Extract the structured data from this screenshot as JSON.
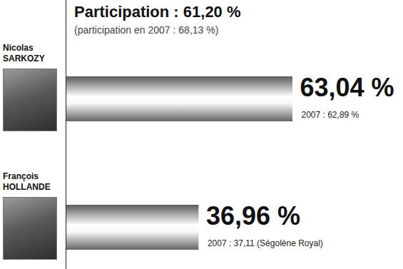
{
  "chart_data": {
    "type": "bar",
    "orientation": "horizontal",
    "title": "Participation : 61,20 %",
    "subtitle": "(participation en 2007 : 68,13 %)",
    "categories": [
      "Nicolas SARKOZY",
      "François HOLLANDE"
    ],
    "values": [
      63.04,
      36.96
    ],
    "value_labels": [
      "63,04 %",
      "36,96 %"
    ],
    "annotations": [
      "2007 : 62,89 %",
      "2007 : 37,11 (Ségolène Royal)"
    ],
    "color": "#8c8c8c",
    "data_labels": true,
    "tick_labels": false
  }
}
